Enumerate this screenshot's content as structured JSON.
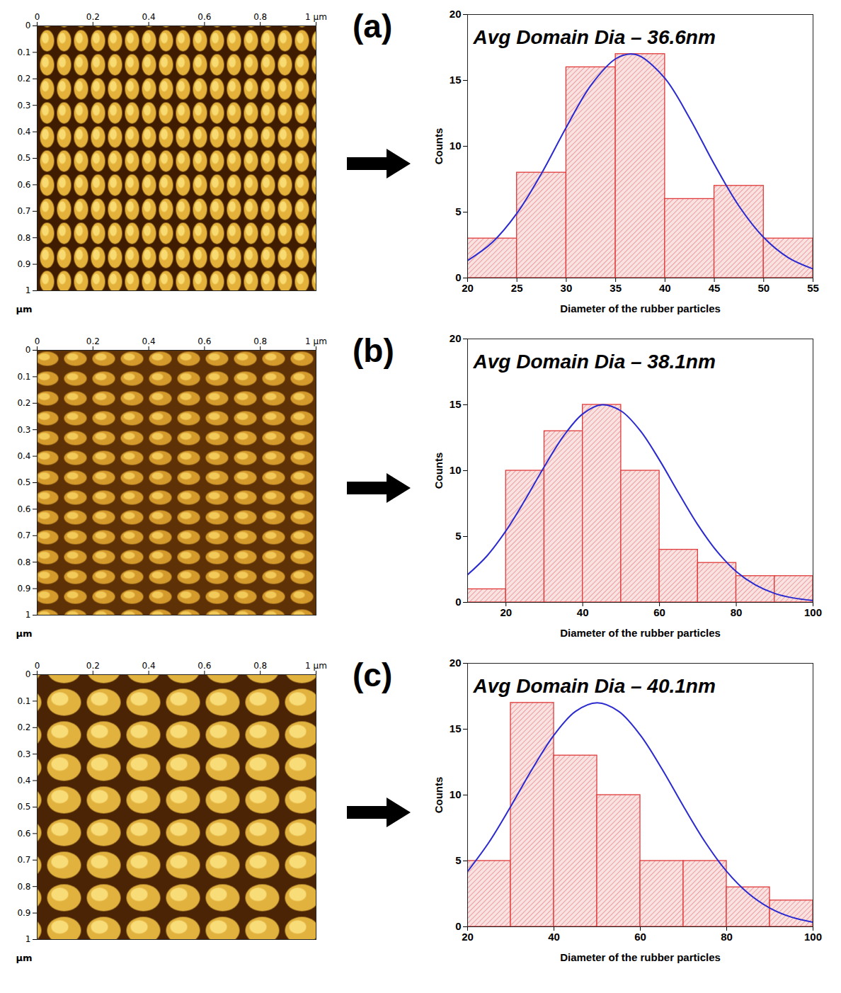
{
  "chart_data": [
    {
      "type": "image",
      "xlim": [
        0,
        1
      ],
      "ylim": [
        1,
        0
      ],
      "xticks": [
        0,
        0.2,
        0.4,
        0.6,
        0.8,
        {
          "value": 1,
          "label": "1 µm"
        }
      ],
      "yticks": [
        0,
        0.1,
        0.2,
        0.3,
        0.4,
        0.5,
        0.6,
        0.7,
        0.8,
        0.9,
        1
      ],
      "ylabel": "µm"
    },
    {
      "type": "histogram",
      "panel_label": "(a)",
      "title": "Avg Domain Dia – 36.6nm",
      "xlabel": "Diameter of the rubber particles",
      "ylabel": "Counts",
      "bins": [
        20,
        25,
        30,
        35,
        40,
        45,
        50,
        55
      ],
      "counts": [
        3,
        8,
        16,
        17,
        6,
        7,
        3
      ],
      "color": "#e03a3a",
      "fit": {
        "x": [
          20,
          22.5,
          25,
          27.5,
          30,
          32.5,
          35,
          36.5,
          37.5,
          40,
          42.5,
          45,
          47.5,
          50,
          52.5,
          55
        ],
        "y": [
          1.32,
          2.7,
          4.91,
          7.95,
          11.44,
          14.63,
          16.64,
          17,
          16.84,
          15.15,
          12.13,
          8.63,
          5.46,
          3.08,
          1.54,
          0.69
        ],
        "color": "#2a2ad0"
      },
      "xlim": [
        20,
        55
      ],
      "xticks": [
        20,
        25,
        30,
        35,
        40,
        45,
        50,
        55
      ],
      "ylim": [
        0,
        20
      ],
      "yticks": [
        0,
        5,
        10,
        15,
        20
      ]
    },
    {
      "type": "image",
      "xlim": [
        0,
        1
      ],
      "ylim": [
        1,
        0
      ],
      "xticks": [
        0,
        0.2,
        0.4,
        0.6,
        0.8,
        {
          "value": 1,
          "label": "1 µm"
        }
      ],
      "yticks": [
        0,
        0.1,
        0.2,
        0.3,
        0.4,
        0.5,
        0.6,
        0.7,
        0.8,
        0.9,
        1
      ],
      "ylabel": "µm"
    },
    {
      "type": "histogram",
      "panel_label": "(b)",
      "title": "Avg Domain Dia – 38.1nm",
      "xlabel": "Diameter of the rubber particles",
      "ylabel": "Counts",
      "bins": [
        10,
        20,
        30,
        40,
        50,
        60,
        70,
        80,
        90,
        100
      ],
      "counts": [
        1,
        10,
        13,
        15,
        10,
        4,
        3,
        2,
        2
      ],
      "color": "#e03a3a",
      "fit": {
        "x": [
          10,
          15,
          20,
          25,
          30,
          35,
          40,
          45,
          50,
          55,
          60,
          65,
          70,
          75,
          80,
          85,
          90,
          95,
          100
        ],
        "y": [
          2.1,
          3.51,
          5.44,
          7.79,
          10.31,
          12.63,
          14.31,
          15,
          14.53,
          13.03,
          10.8,
          8.29,
          5.88,
          3.86,
          2.34,
          1.32,
          0.68,
          0.33,
          0.15
        ],
        "color": "#2a2ad0"
      },
      "xlim": [
        10,
        100
      ],
      "xticks": [
        20,
        40,
        60,
        80,
        100
      ],
      "ylim": [
        0,
        20
      ],
      "yticks": [
        0,
        5,
        10,
        15,
        20
      ]
    },
    {
      "type": "image",
      "xlim": [
        0,
        1
      ],
      "ylim": [
        1,
        0
      ],
      "xticks": [
        0,
        0.2,
        0.4,
        0.6,
        0.8,
        {
          "value": 1,
          "label": "1 µm"
        }
      ],
      "yticks": [
        0,
        0.1,
        0.2,
        0.3,
        0.4,
        0.5,
        0.6,
        0.7,
        0.8,
        0.9,
        1
      ],
      "ylabel": "µm"
    },
    {
      "type": "histogram",
      "panel_label": "(c)",
      "title": "Avg Domain Dia – 40.1nm",
      "xlabel": "Diameter of the rubber particles",
      "ylabel": "Counts",
      "bins": [
        20,
        30,
        40,
        50,
        60,
        70,
        80,
        90,
        100
      ],
      "counts": [
        5,
        17,
        13,
        10,
        5,
        5,
        3,
        2
      ],
      "color": "#e03a3a",
      "fit": {
        "x": [
          20,
          25,
          30,
          35,
          40,
          45,
          50,
          55,
          60,
          65,
          70,
          75,
          80,
          85,
          90,
          95,
          100
        ],
        "y": [
          4.2,
          6.44,
          9.14,
          11.99,
          14.55,
          16.35,
          17,
          16.35,
          14.55,
          11.99,
          9.14,
          6.44,
          4.2,
          2.54,
          1.42,
          0.73,
          0.35
        ],
        "color": "#2a2ad0"
      },
      "xlim": [
        20,
        100
      ],
      "xticks": [
        20,
        40,
        60,
        80,
        100
      ],
      "ylim": [
        0,
        20
      ],
      "yticks": [
        0,
        5,
        10,
        15,
        20
      ]
    }
  ]
}
